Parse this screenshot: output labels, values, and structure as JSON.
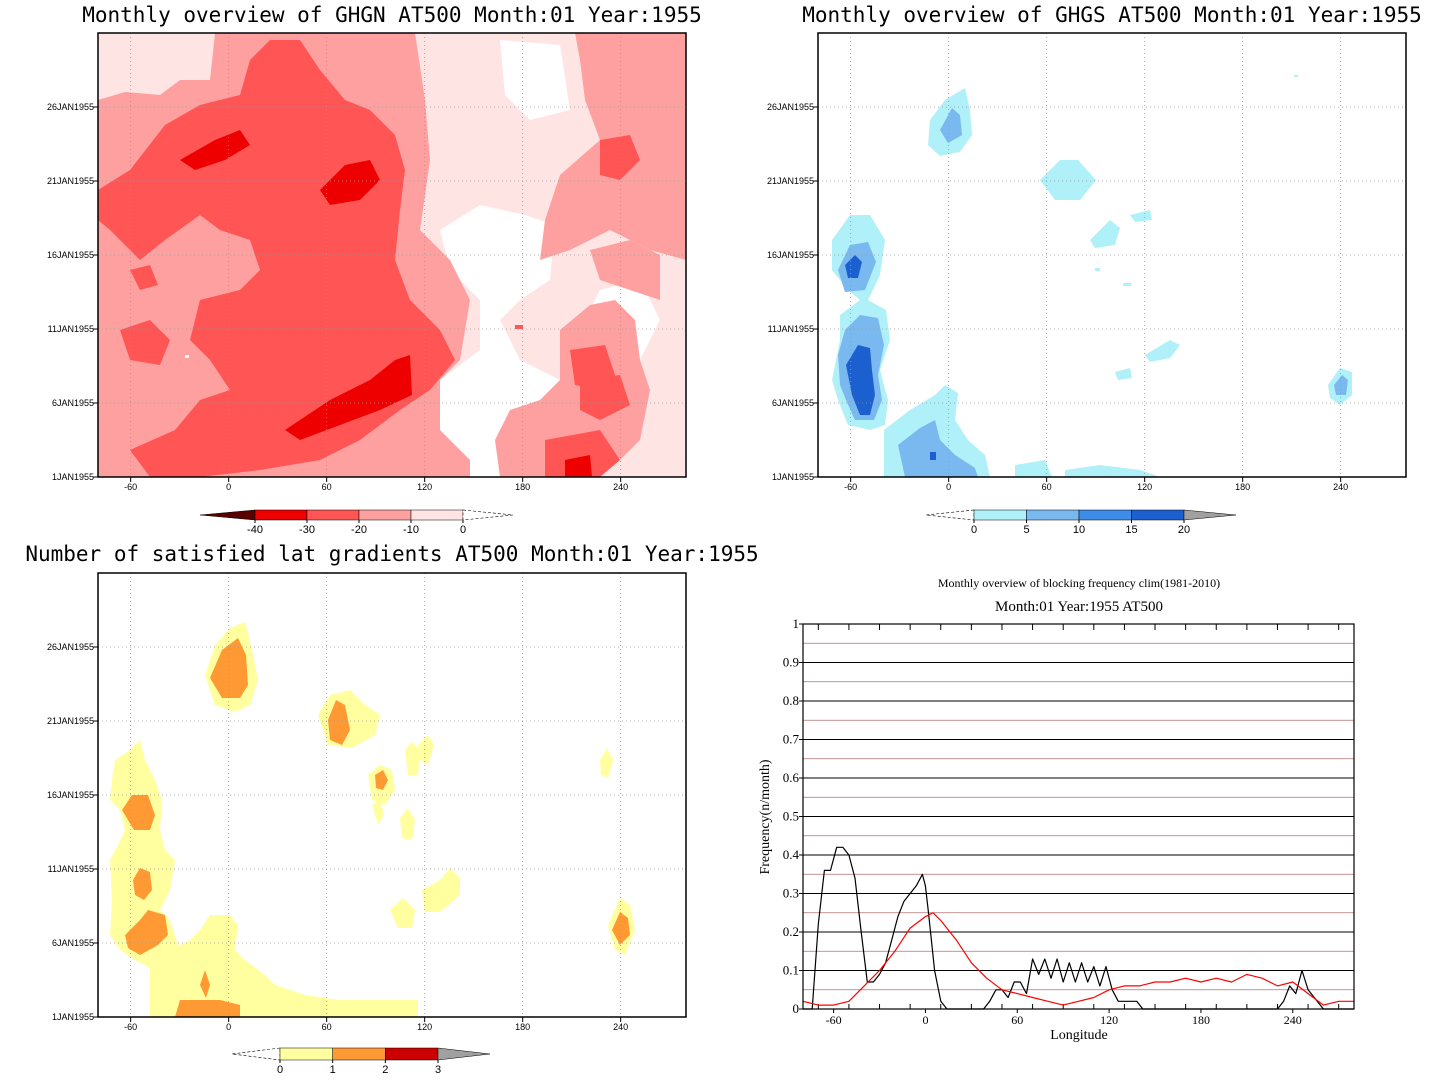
{
  "chart_data": [
    {
      "type": "heatmap",
      "title": "Monthly overview of GHGN AT500 Month:01 Year:1955",
      "x_ticks": [
        "-60",
        "0",
        "60",
        "120",
        "180",
        "240"
      ],
      "y_ticks": [
        "1JAN1955",
        "6JAN1955",
        "11JAN1955",
        "16JAN1955",
        "21JAN1955",
        "26JAN1955"
      ],
      "xlim": [
        -80,
        280
      ],
      "ylim": [
        1,
        31
      ],
      "grid": true,
      "colorbar": {
        "labels": [
          "-40",
          "-30",
          "-20",
          "-10",
          "0"
        ],
        "colors": [
          "#5a0000",
          "#ee0000",
          "#ff5555",
          "#ffa0a0",
          "#ffe4e4"
        ]
      }
    },
    {
      "type": "heatmap",
      "title": "Monthly overview of GHGS AT500 Month:01 Year:1955",
      "x_ticks": [
        "-60",
        "0",
        "60",
        "120",
        "180",
        "240"
      ],
      "y_ticks": [
        "1JAN1955",
        "6JAN1955",
        "11JAN1955",
        "16JAN1955",
        "21JAN1955",
        "26JAN1955"
      ],
      "xlim": [
        -80,
        280
      ],
      "ylim": [
        1,
        31
      ],
      "grid": true,
      "colorbar": {
        "labels": [
          "0",
          "5",
          "10",
          "15",
          "20"
        ],
        "colors": [
          "#b0f0f8",
          "#7ab8f0",
          "#3c8ce8",
          "#1c60d0",
          "#a0a0a0"
        ]
      }
    },
    {
      "type": "heatmap",
      "title": "Number of satisfied lat gradients AT500 Month:01 Year:1955",
      "x_ticks": [
        "-60",
        "0",
        "60",
        "120",
        "180",
        "240"
      ],
      "y_ticks": [
        "1JAN1955",
        "6JAN1955",
        "11JAN1955",
        "16JAN1955",
        "21JAN1955",
        "26JAN1955"
      ],
      "xlim": [
        -80,
        280
      ],
      "ylim": [
        1,
        31
      ],
      "grid": true,
      "colorbar": {
        "labels": [
          "0",
          "1",
          "2",
          "3"
        ],
        "colors": [
          "#ffffa0",
          "#ff9933",
          "#cc0000",
          "#a0a0a0"
        ]
      }
    },
    {
      "type": "line",
      "title": "Monthly overview of blocking frequency clim(1981-2010)",
      "subtitle": "Month:01 Year:1955  AT500",
      "xlabel": "Longitude",
      "ylabel": "Frequency(n/month)",
      "xlim": [
        -80,
        280
      ],
      "ylim": [
        0,
        1
      ],
      "x_ticks": [
        "-60",
        "0",
        "60",
        "120",
        "180",
        "240"
      ],
      "y_ticks": [
        "0",
        "0.1",
        "0.2",
        "0.3",
        "0.4",
        "0.5",
        "0.6",
        "0.7",
        "0.8",
        "0.9",
        "1"
      ],
      "grid": true,
      "series": [
        {
          "color": "#000000",
          "x": [
            -80,
            -74,
            -70,
            -66,
            -62,
            -58,
            -54,
            -50,
            -46,
            -42,
            -38,
            -34,
            -30,
            -26,
            -22,
            -18,
            -14,
            -10,
            -6,
            -2,
            0,
            2,
            6,
            10,
            14,
            18,
            22,
            26,
            30,
            34,
            38,
            42,
            46,
            50,
            54,
            58,
            62,
            66,
            70,
            74,
            78,
            82,
            86,
            90,
            94,
            98,
            102,
            106,
            110,
            114,
            118,
            122,
            126,
            130,
            134,
            138,
            142,
            146,
            150,
            160,
            180,
            200,
            220,
            230,
            234,
            238,
            242,
            246,
            250,
            260,
            270,
            280
          ],
          "y": [
            0,
            0,
            0.22,
            0.36,
            0.36,
            0.42,
            0.42,
            0.4,
            0.34,
            0.2,
            0.07,
            0.07,
            0.09,
            0.12,
            0.18,
            0.24,
            0.28,
            0.3,
            0.32,
            0.35,
            0.32,
            0.25,
            0.1,
            0.02,
            0.0,
            0.0,
            0.0,
            0.0,
            0.0,
            0.0,
            0.0,
            0.02,
            0.05,
            0.05,
            0.03,
            0.07,
            0.07,
            0.04,
            0.13,
            0.09,
            0.13,
            0.08,
            0.13,
            0.07,
            0.12,
            0.07,
            0.12,
            0.07,
            0.11,
            0.06,
            0.11,
            0.05,
            0.02,
            0.02,
            0.02,
            0.02,
            0.0,
            0.0,
            0.0,
            0.0,
            0.0,
            0.0,
            0.0,
            0.0,
            0.02,
            0.06,
            0.04,
            0.1,
            0.05,
            0.0,
            0.0,
            0.0
          ]
        },
        {
          "color": "#ff0000",
          "x": [
            -80,
            -70,
            -60,
            -50,
            -40,
            -30,
            -20,
            -10,
            0,
            5,
            10,
            20,
            30,
            40,
            50,
            60,
            70,
            80,
            90,
            100,
            110,
            120,
            130,
            140,
            150,
            160,
            170,
            180,
            190,
            200,
            210,
            220,
            230,
            240,
            250,
            260,
            270,
            280
          ],
          "y": [
            0.02,
            0.01,
            0.01,
            0.02,
            0.06,
            0.1,
            0.15,
            0.21,
            0.24,
            0.25,
            0.23,
            0.18,
            0.12,
            0.08,
            0.05,
            0.04,
            0.03,
            0.02,
            0.01,
            0.02,
            0.03,
            0.05,
            0.06,
            0.06,
            0.07,
            0.07,
            0.08,
            0.07,
            0.08,
            0.07,
            0.09,
            0.08,
            0.06,
            0.07,
            0.04,
            0.01,
            0.02,
            0.02
          ]
        }
      ]
    }
  ]
}
